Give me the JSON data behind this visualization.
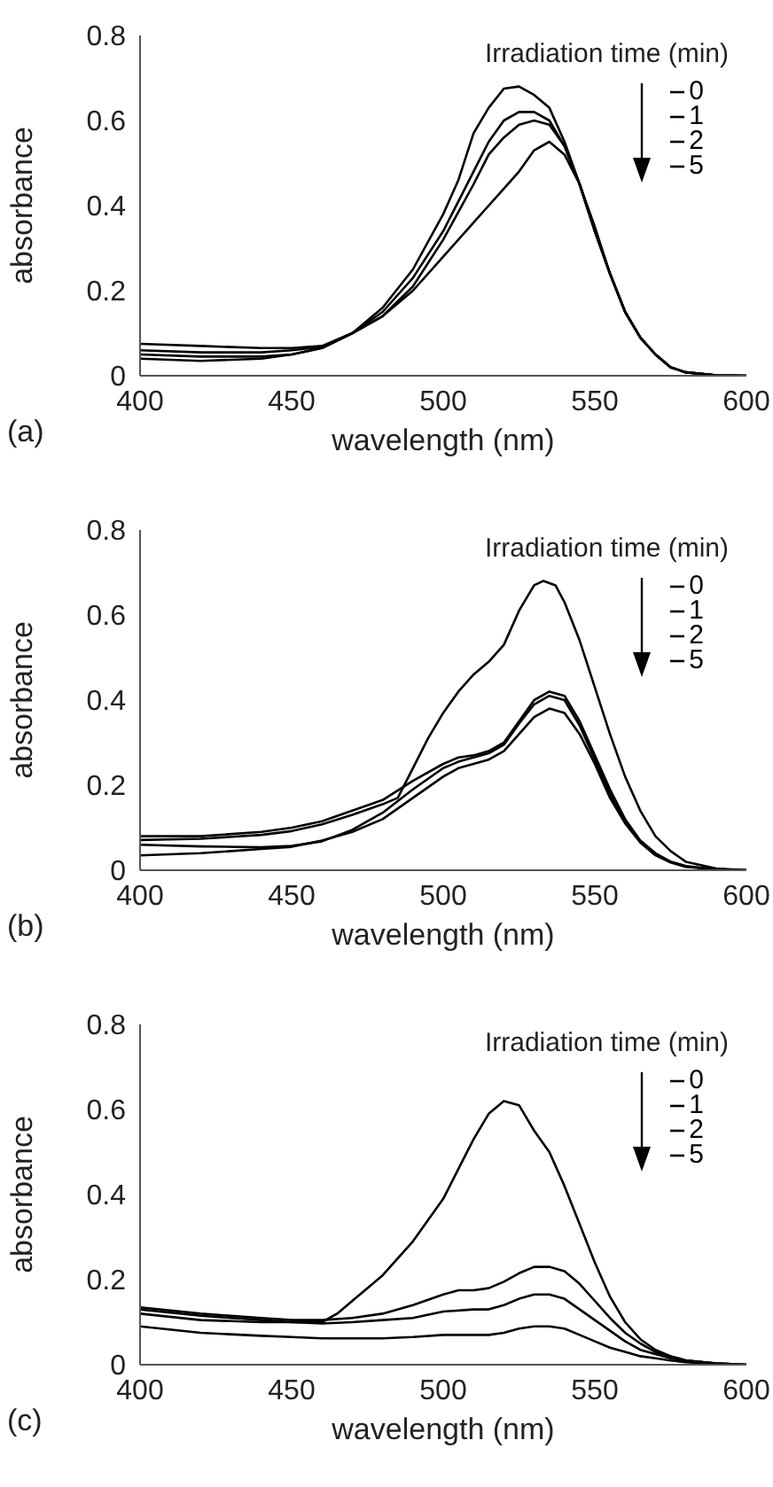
{
  "chart_data": [
    {
      "type": "line",
      "xlabel": "wavelength (nm)",
      "ylabel": "absorbance",
      "legend_title": "Irradiation time (min)",
      "legend": "top right",
      "annotations": [
        "(a)"
      ],
      "xlim": [
        400,
        600
      ],
      "xticks": [
        400,
        450,
        500,
        550,
        600
      ],
      "ylim": [
        0,
        0.8
      ],
      "yticks": [
        0,
        0.2,
        0.4,
        0.6,
        0.8
      ],
      "marker": "none",
      "line_style": "solid",
      "series": [
        {
          "name": "0",
          "color": "#000000",
          "x": [
            400,
            420,
            440,
            450,
            460,
            470,
            480,
            490,
            500,
            505,
            510,
            515,
            520,
            525,
            530,
            535,
            540,
            545,
            550,
            555,
            560,
            565,
            570,
            575,
            580,
            590,
            600
          ],
          "values": [
            0.04,
            0.035,
            0.04,
            0.05,
            0.065,
            0.1,
            0.16,
            0.25,
            0.38,
            0.46,
            0.57,
            0.63,
            0.675,
            0.68,
            0.66,
            0.63,
            0.55,
            0.45,
            0.34,
            0.24,
            0.15,
            0.09,
            0.05,
            0.02,
            0.008,
            0.001,
            0
          ]
        },
        {
          "name": "1",
          "color": "#000000",
          "x": [
            400,
            420,
            440,
            450,
            460,
            470,
            480,
            490,
            500,
            510,
            515,
            520,
            525,
            530,
            535,
            540,
            545,
            550,
            555,
            560,
            565,
            570,
            575,
            580,
            590,
            600
          ],
          "values": [
            0.05,
            0.045,
            0.045,
            0.05,
            0.065,
            0.1,
            0.15,
            0.23,
            0.34,
            0.48,
            0.55,
            0.6,
            0.62,
            0.62,
            0.6,
            0.54,
            0.45,
            0.34,
            0.24,
            0.15,
            0.09,
            0.05,
            0.02,
            0.008,
            0.001,
            0
          ]
        },
        {
          "name": "2",
          "color": "#000000",
          "x": [
            400,
            420,
            440,
            450,
            460,
            470,
            480,
            490,
            500,
            510,
            515,
            520,
            525,
            530,
            535,
            540,
            545,
            550,
            555,
            560,
            565,
            570,
            575,
            580,
            590,
            600
          ],
          "values": [
            0.06,
            0.055,
            0.055,
            0.06,
            0.068,
            0.1,
            0.14,
            0.21,
            0.32,
            0.45,
            0.52,
            0.56,
            0.59,
            0.6,
            0.59,
            0.54,
            0.45,
            0.34,
            0.24,
            0.15,
            0.09,
            0.05,
            0.02,
            0.008,
            0.001,
            0
          ]
        },
        {
          "name": "5",
          "color": "#000000",
          "x": [
            400,
            420,
            440,
            450,
            460,
            470,
            480,
            490,
            500,
            510,
            515,
            520,
            525,
            530,
            535,
            540,
            545,
            550,
            555,
            560,
            565,
            570,
            575,
            580,
            590,
            600
          ],
          "values": [
            0.075,
            0.07,
            0.065,
            0.065,
            0.07,
            0.1,
            0.14,
            0.2,
            0.28,
            0.36,
            0.4,
            0.44,
            0.48,
            0.53,
            0.55,
            0.52,
            0.45,
            0.35,
            0.24,
            0.15,
            0.09,
            0.05,
            0.02,
            0.008,
            0.001,
            0
          ]
        }
      ]
    },
    {
      "type": "line",
      "xlabel": "wavelength (nm)",
      "ylabel": "absorbance",
      "legend_title": "Irradiation time (min)",
      "legend": "top right",
      "annotations": [
        "(b)"
      ],
      "xlim": [
        400,
        600
      ],
      "xticks": [
        400,
        450,
        500,
        550,
        600
      ],
      "ylim": [
        0,
        0.8
      ],
      "yticks": [
        0,
        0.2,
        0.4,
        0.6,
        0.8
      ],
      "marker": "none",
      "line_style": "solid",
      "series": [
        {
          "name": "0",
          "color": "#000000",
          "x": [
            400,
            420,
            440,
            450,
            460,
            470,
            480,
            485,
            490,
            495,
            500,
            505,
            510,
            515,
            520,
            525,
            530,
            533,
            537,
            540,
            545,
            550,
            555,
            560,
            565,
            570,
            575,
            580,
            590,
            600
          ],
          "values": [
            0.071,
            0.074,
            0.083,
            0.092,
            0.108,
            0.13,
            0.155,
            0.17,
            0.24,
            0.31,
            0.37,
            0.42,
            0.46,
            0.49,
            0.53,
            0.61,
            0.67,
            0.68,
            0.67,
            0.63,
            0.54,
            0.43,
            0.32,
            0.22,
            0.14,
            0.08,
            0.045,
            0.02,
            0.004,
            0
          ]
        },
        {
          "name": "1",
          "color": "#000000",
          "x": [
            400,
            420,
            440,
            450,
            460,
            470,
            480,
            490,
            500,
            505,
            510,
            515,
            520,
            525,
            530,
            535,
            540,
            545,
            550,
            555,
            560,
            565,
            570,
            575,
            580,
            590,
            600
          ],
          "values": [
            0.08,
            0.08,
            0.09,
            0.1,
            0.115,
            0.14,
            0.165,
            0.21,
            0.25,
            0.265,
            0.27,
            0.28,
            0.3,
            0.35,
            0.4,
            0.42,
            0.41,
            0.35,
            0.27,
            0.19,
            0.12,
            0.07,
            0.04,
            0.02,
            0.01,
            0.002,
            0
          ]
        },
        {
          "name": "2",
          "color": "#000000",
          "x": [
            400,
            420,
            440,
            450,
            460,
            470,
            480,
            490,
            500,
            505,
            510,
            515,
            520,
            525,
            530,
            535,
            540,
            545,
            550,
            555,
            560,
            565,
            570,
            575,
            580,
            590,
            600
          ],
          "values": [
            0.06,
            0.056,
            0.054,
            0.057,
            0.068,
            0.095,
            0.135,
            0.19,
            0.24,
            0.255,
            0.265,
            0.275,
            0.295,
            0.345,
            0.39,
            0.41,
            0.4,
            0.34,
            0.26,
            0.18,
            0.115,
            0.068,
            0.038,
            0.02,
            0.009,
            0.002,
            0
          ]
        },
        {
          "name": "5",
          "color": "#000000",
          "x": [
            400,
            420,
            440,
            450,
            460,
            470,
            480,
            490,
            500,
            505,
            510,
            515,
            520,
            525,
            530,
            535,
            540,
            545,
            550,
            555,
            560,
            565,
            570,
            575,
            580,
            590,
            600
          ],
          "values": [
            0.035,
            0.04,
            0.05,
            0.055,
            0.07,
            0.09,
            0.12,
            0.17,
            0.22,
            0.24,
            0.25,
            0.26,
            0.28,
            0.32,
            0.36,
            0.38,
            0.37,
            0.32,
            0.25,
            0.17,
            0.11,
            0.065,
            0.035,
            0.018,
            0.008,
            0.002,
            0
          ]
        }
      ]
    },
    {
      "type": "line",
      "xlabel": "wavelength (nm)",
      "ylabel": "absorbance",
      "legend_title": "Irradiation time (min)",
      "legend": "top right",
      "annotations": [
        "(c)"
      ],
      "xlim": [
        400,
        600
      ],
      "xticks": [
        400,
        450,
        500,
        550,
        600
      ],
      "ylim": [
        0,
        0.8
      ],
      "yticks": [
        0,
        0.2,
        0.4,
        0.6,
        0.8
      ],
      "marker": "none",
      "line_style": "solid",
      "series": [
        {
          "name": "0",
          "color": "#000000",
          "x": [
            400,
            420,
            440,
            450,
            460,
            465,
            470,
            480,
            490,
            500,
            505,
            510,
            515,
            520,
            525,
            530,
            535,
            540,
            545,
            550,
            555,
            560,
            565,
            570,
            575,
            580,
            590,
            600
          ],
          "values": [
            0.13,
            0.115,
            0.105,
            0.1,
            0.1,
            0.12,
            0.15,
            0.21,
            0.29,
            0.39,
            0.46,
            0.53,
            0.59,
            0.62,
            0.61,
            0.55,
            0.5,
            0.42,
            0.33,
            0.24,
            0.16,
            0.1,
            0.06,
            0.035,
            0.02,
            0.01,
            0.003,
            0
          ]
        },
        {
          "name": "1",
          "color": "#000000",
          "x": [
            400,
            420,
            440,
            450,
            460,
            470,
            480,
            490,
            500,
            505,
            510,
            515,
            520,
            525,
            530,
            535,
            540,
            545,
            550,
            555,
            560,
            565,
            570,
            575,
            580,
            590,
            600
          ],
          "values": [
            0.135,
            0.12,
            0.11,
            0.105,
            0.105,
            0.11,
            0.12,
            0.14,
            0.165,
            0.175,
            0.175,
            0.18,
            0.195,
            0.215,
            0.23,
            0.23,
            0.22,
            0.19,
            0.15,
            0.11,
            0.075,
            0.05,
            0.03,
            0.02,
            0.01,
            0.003,
            0
          ]
        },
        {
          "name": "2",
          "color": "#000000",
          "x": [
            400,
            420,
            440,
            450,
            460,
            470,
            480,
            490,
            500,
            510,
            515,
            520,
            525,
            530,
            535,
            540,
            545,
            550,
            555,
            560,
            565,
            570,
            575,
            580,
            590,
            600
          ],
          "values": [
            0.12,
            0.105,
            0.1,
            0.1,
            0.097,
            0.1,
            0.105,
            0.11,
            0.125,
            0.13,
            0.13,
            0.14,
            0.155,
            0.165,
            0.165,
            0.155,
            0.13,
            0.105,
            0.08,
            0.055,
            0.035,
            0.025,
            0.015,
            0.01,
            0.003,
            0
          ]
        },
        {
          "name": "5",
          "color": "#000000",
          "x": [
            400,
            420,
            440,
            450,
            460,
            470,
            480,
            490,
            500,
            510,
            515,
            520,
            525,
            530,
            535,
            540,
            545,
            550,
            555,
            560,
            565,
            570,
            575,
            580,
            590,
            600
          ],
          "values": [
            0.09,
            0.075,
            0.068,
            0.065,
            0.062,
            0.062,
            0.062,
            0.065,
            0.07,
            0.07,
            0.07,
            0.075,
            0.085,
            0.09,
            0.09,
            0.085,
            0.07,
            0.055,
            0.04,
            0.03,
            0.02,
            0.015,
            0.01,
            0.006,
            0.002,
            0
          ]
        }
      ]
    }
  ]
}
